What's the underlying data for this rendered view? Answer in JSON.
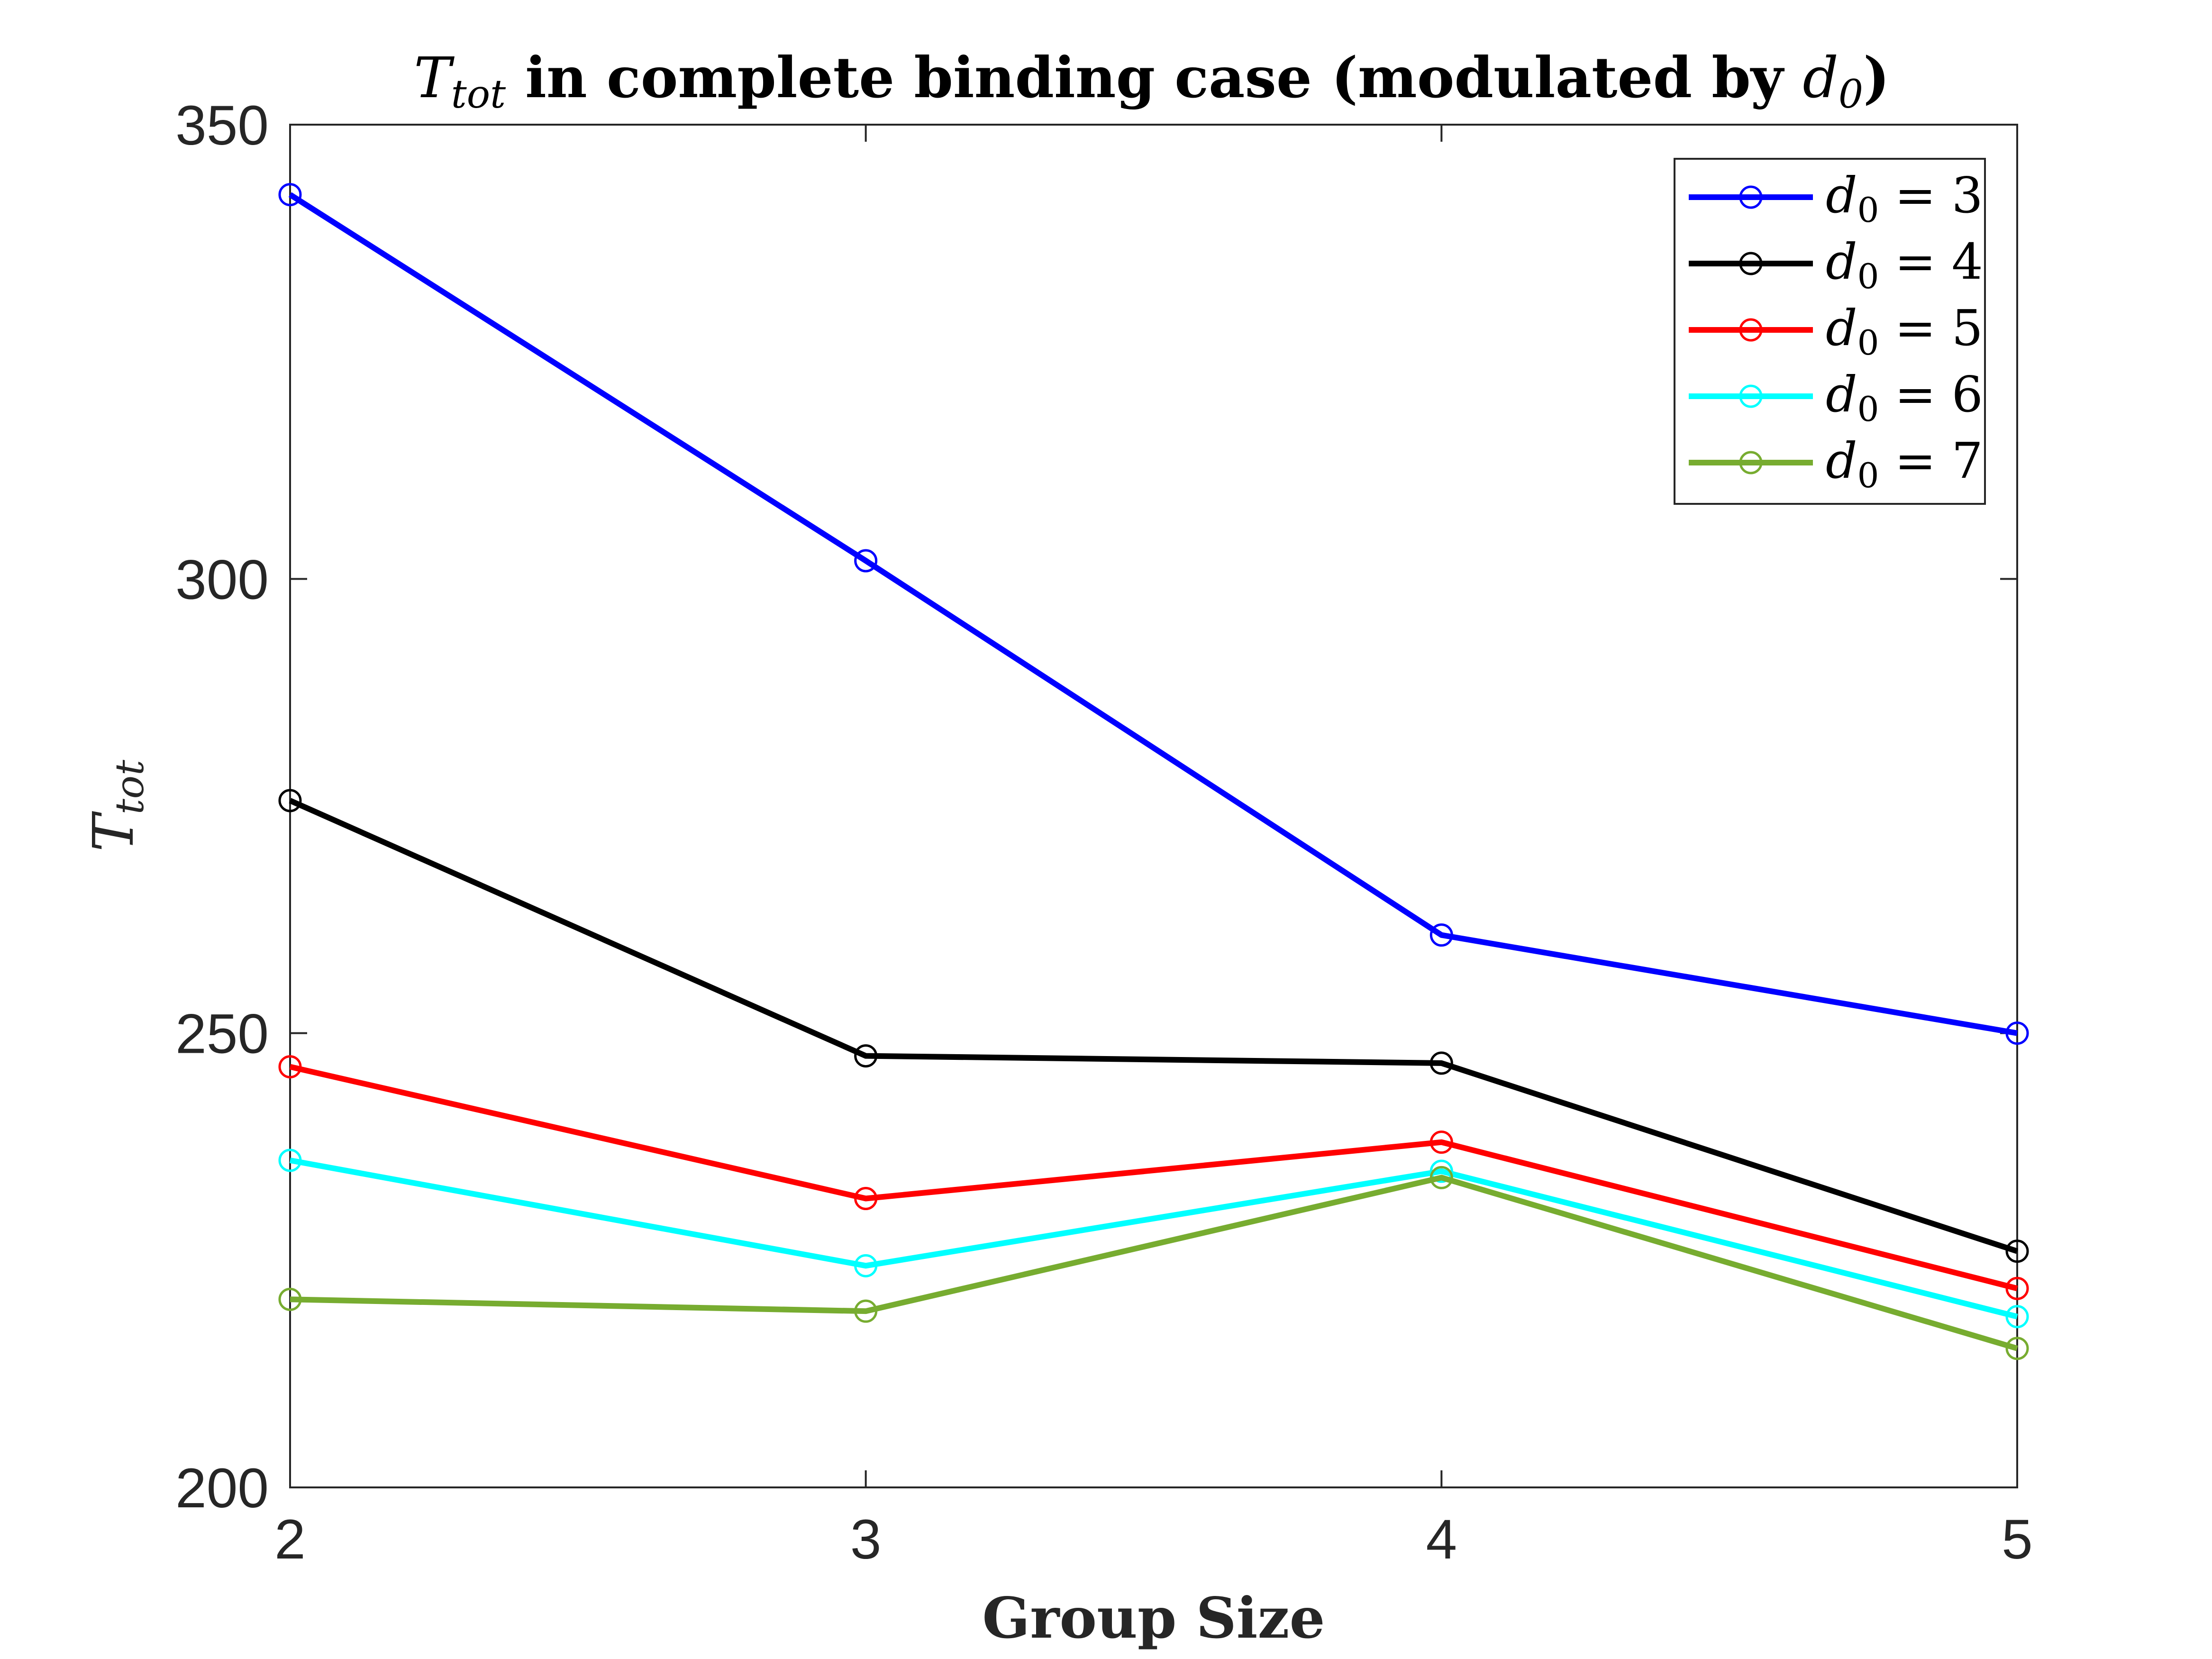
{
  "chart_data": {
    "type": "line",
    "title_prefix": "T",
    "title_prefix_sub": "tot",
    "title_middle": " in complete binding case (modulated by ",
    "title_var": "d",
    "title_var_sub": "0",
    "title_suffix": ")",
    "xlabel": "Group Size",
    "ylabel": "T",
    "ylabel_sub": "tot",
    "x": [
      2,
      3,
      4,
      5
    ],
    "xticks": [
      "2",
      "3",
      "4",
      "5"
    ],
    "yticks": [
      "200",
      "250",
      "300",
      "350"
    ],
    "ytick_values": [
      200,
      250,
      300,
      350
    ],
    "xlim": [
      2,
      5
    ],
    "ylim": [
      200,
      350
    ],
    "grid": false,
    "legend_position": "top-right",
    "legend_var": "d",
    "legend_var_sub": "0",
    "series": [
      {
        "name": "d0 = 3",
        "value_label": "= 3",
        "color": "#0000ff",
        "values": [
          342.3,
          302.0,
          260.8,
          250.0
        ]
      },
      {
        "name": "d0 = 4",
        "value_label": "= 4",
        "color": "#000000",
        "values": [
          275.6,
          247.5,
          246.7,
          226.0
        ]
      },
      {
        "name": "d0 = 5",
        "value_label": "= 5",
        "color": "#ff0000",
        "values": [
          246.3,
          231.8,
          238.0,
          221.9
        ]
      },
      {
        "name": "d0 = 6",
        "value_label": "= 6",
        "color": "#00ffff",
        "values": [
          236.0,
          224.4,
          234.8,
          218.8
        ]
      },
      {
        "name": "d0 = 7",
        "value_label": "= 7",
        "color": "#77ac30",
        "values": [
          220.7,
          219.4,
          234.1,
          215.3
        ]
      }
    ]
  }
}
